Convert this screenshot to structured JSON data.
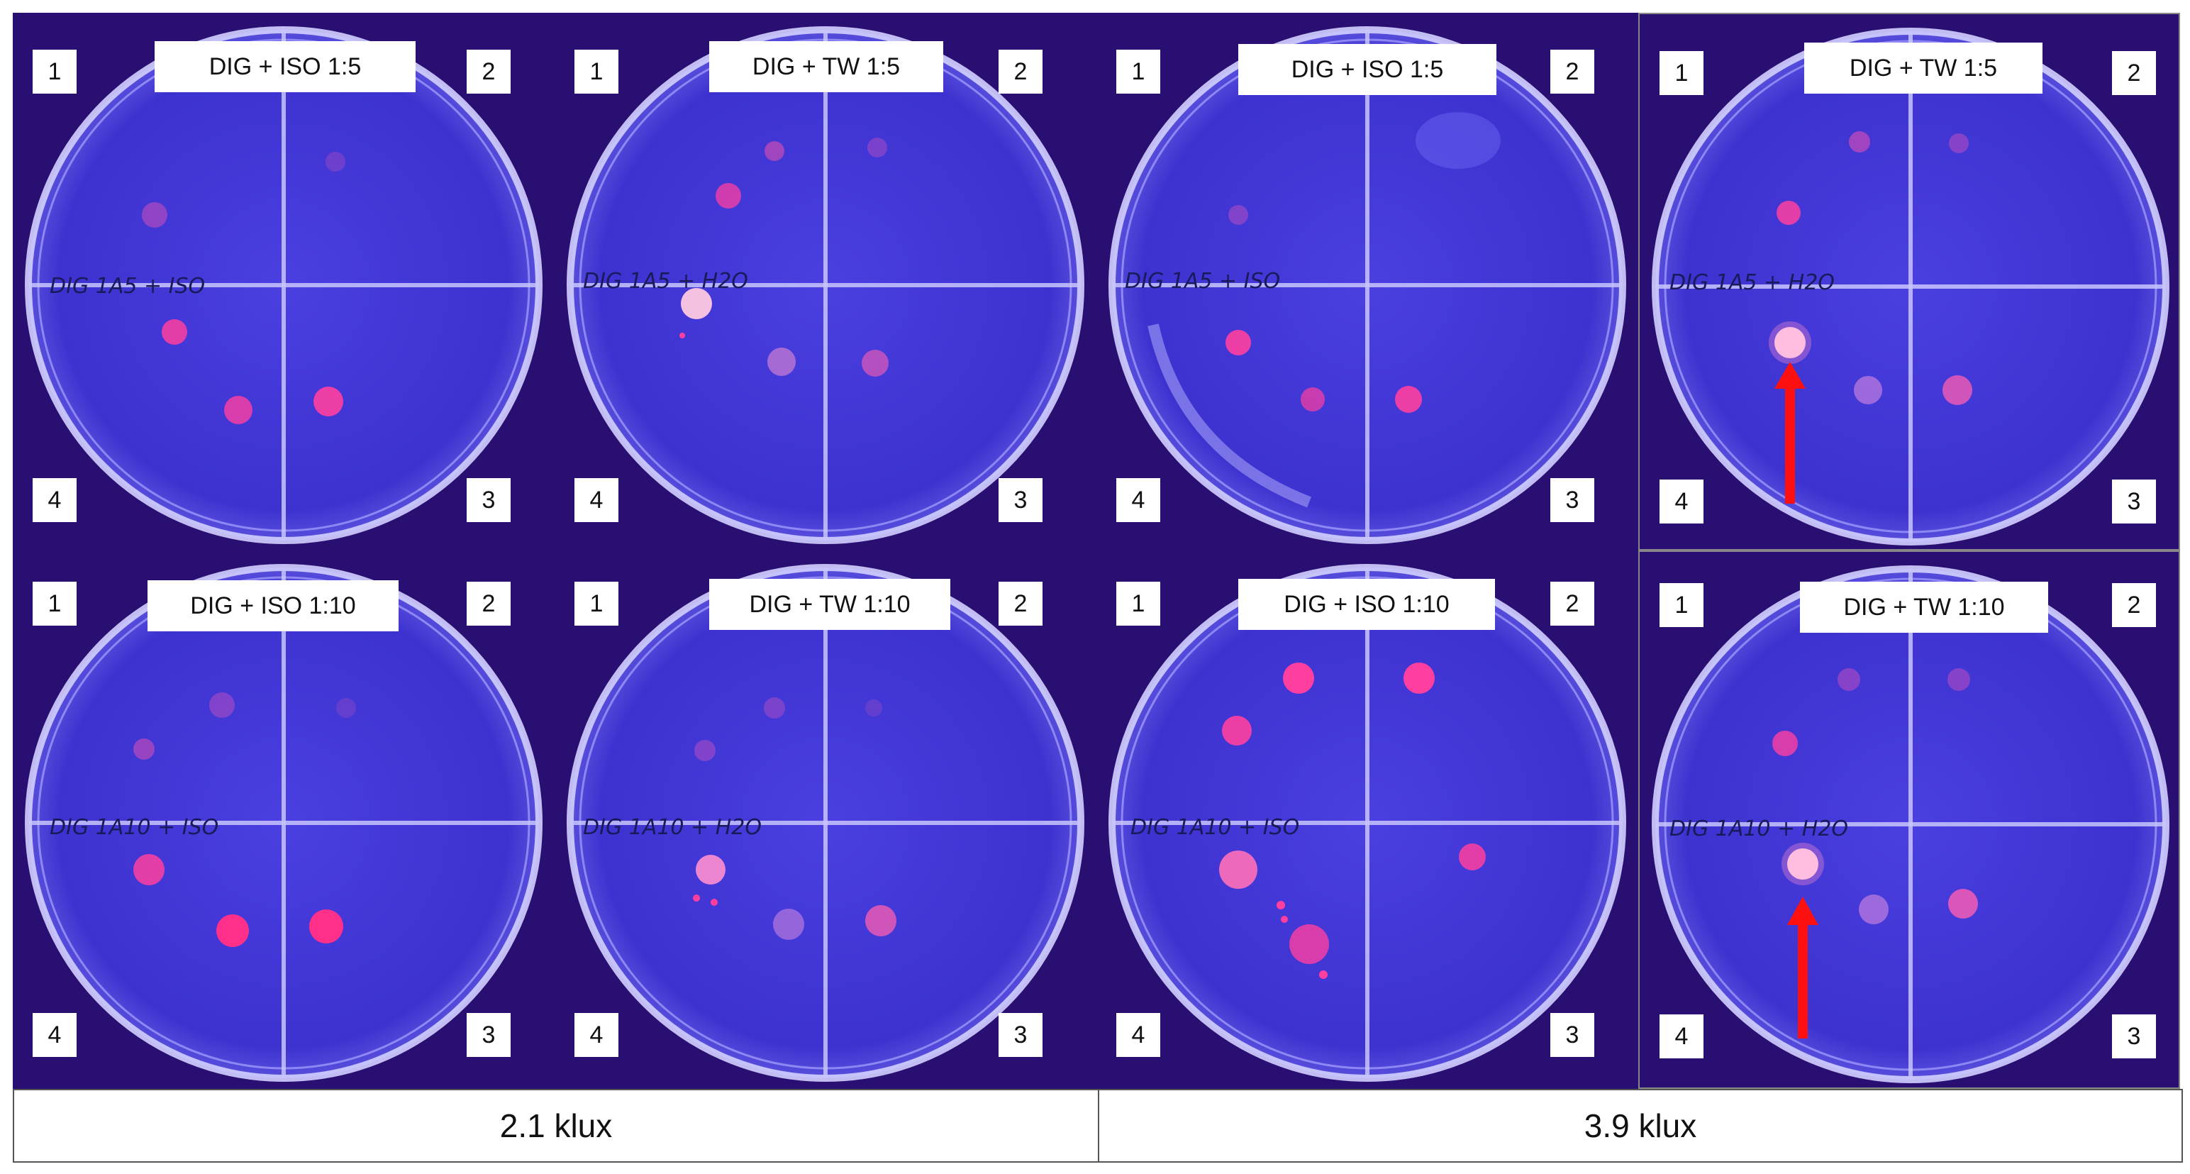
{
  "panels": [
    {
      "label": "DIG + ISO 1:5",
      "handwriting": "DIG 1A5 + ISO",
      "q": [
        "1",
        "2",
        "3",
        "4"
      ],
      "arrow": false
    },
    {
      "label": "DIG + TW 1:5",
      "handwriting": "DIG 1A5 + H2O",
      "q": [
        "1",
        "2",
        "3",
        "4"
      ],
      "arrow": false
    },
    {
      "label": "DIG + ISO 1:5",
      "handwriting": "DIG 1A5 + ISO",
      "q": [
        "1",
        "2",
        "3",
        "4"
      ],
      "arrow": false
    },
    {
      "label": "DIG + TW 1:5",
      "handwriting": "DIG 1A5 + H2O",
      "q": [
        "1",
        "2",
        "3",
        "4"
      ],
      "arrow": true
    },
    {
      "label": "DIG + ISO 1:10",
      "handwriting": "DIG 1A10 + ISO",
      "q": [
        "1",
        "2",
        "3",
        "4"
      ],
      "arrow": false
    },
    {
      "label": "DIG + TW 1:10",
      "handwriting": "DIG 1A10 + H2O",
      "q": [
        "1",
        "2",
        "3",
        "4"
      ],
      "arrow": false
    },
    {
      "label": "DIG + ISO 1:10",
      "handwriting": "DIG 1A10 + ISO",
      "q": [
        "1",
        "2",
        "3",
        "4"
      ],
      "arrow": false
    },
    {
      "label": "DIG + TW 1:10",
      "handwriting": "DIG 1A10 + H2O",
      "q": [
        "1",
        "2",
        "3",
        "4"
      ],
      "arrow": true
    }
  ],
  "footer": {
    "left": "2.1 klux",
    "right": "3.9 klux"
  },
  "colors": {
    "background": "#2a0f72",
    "agar": "#3a2fd0",
    "rim": "#c9c6ff",
    "colony": "#ff3fa0",
    "arrow": "#ff1010"
  }
}
